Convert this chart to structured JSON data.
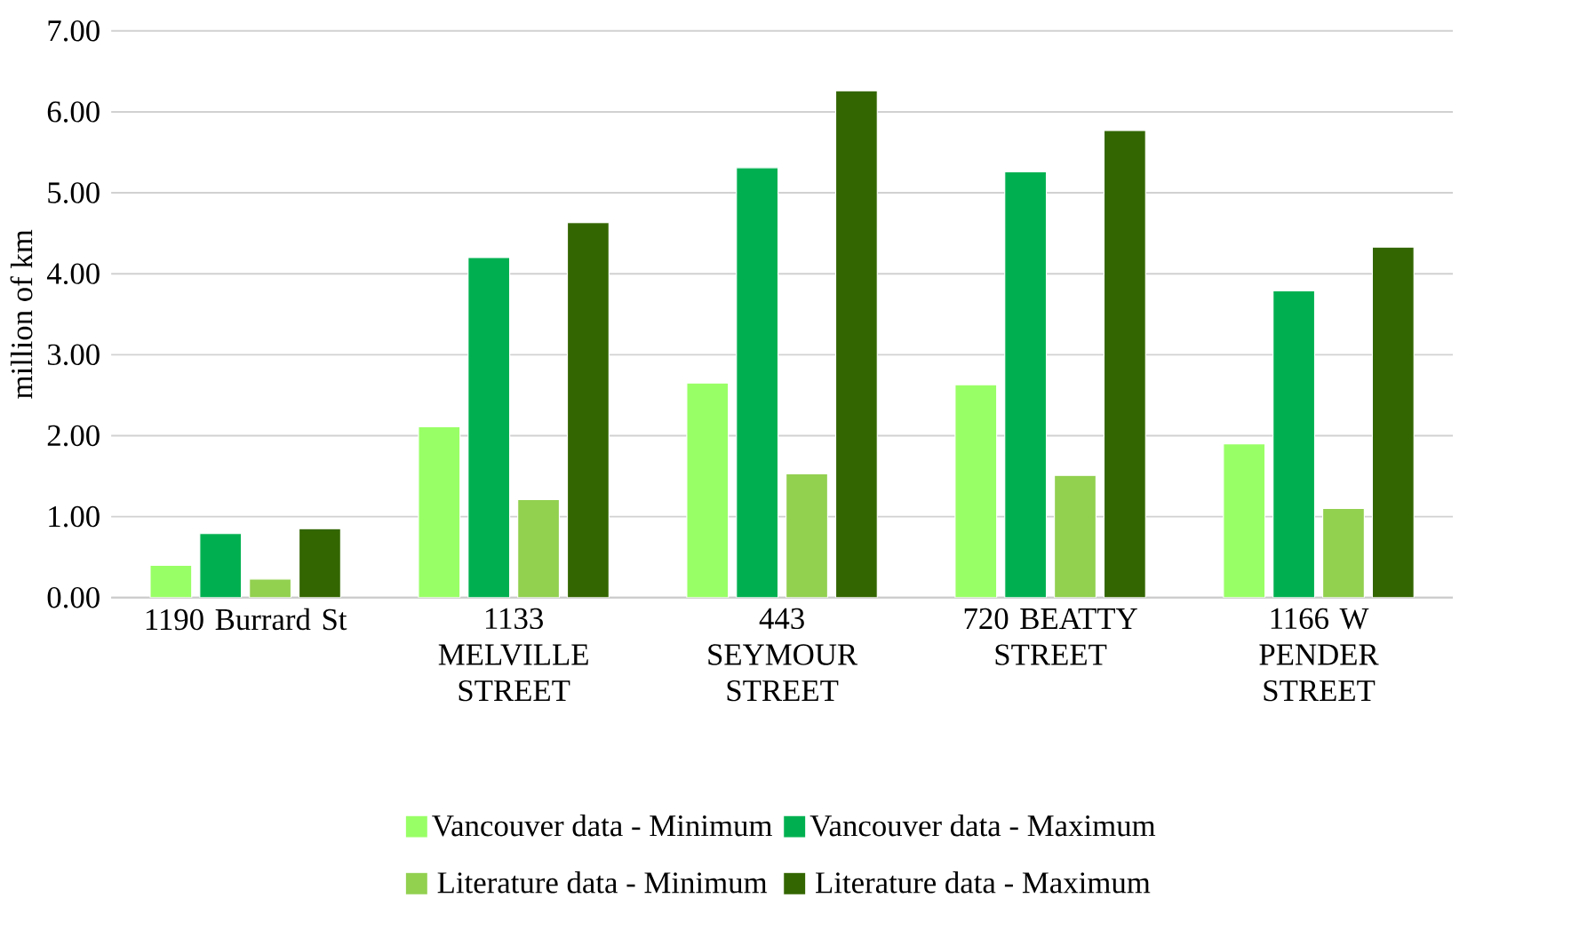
{
  "chart_data": {
    "type": "bar",
    "ylabel": "million of km",
    "categories": [
      "1190 Burrard St",
      "1133 MELVILLE STREET",
      "443 SEYMOUR STREET",
      "720 BEATTY STREET",
      "1166 W PENDER STREET"
    ],
    "series": [
      {
        "name": "Vancouver data - Minimum",
        "color": "#99ff66",
        "values": [
          0.4,
          2.11,
          2.65,
          2.63,
          1.9
        ]
      },
      {
        "name": "Vancouver data - Maximum",
        "color": "#00b050",
        "values": [
          0.79,
          4.2,
          5.31,
          5.26,
          3.79
        ]
      },
      {
        "name": "Literature data - Minimum",
        "color": "#92d050",
        "values": [
          0.23,
          1.21,
          1.53,
          1.51,
          1.1
        ]
      },
      {
        "name": "Literature data - Maximum",
        "color": "#336600",
        "values": [
          0.85,
          4.63,
          6.26,
          5.77,
          4.33
        ]
      }
    ],
    "ylim": [
      0,
      7
    ],
    "yticks": [
      {
        "value": 0,
        "label": "0.00"
      },
      {
        "value": 1,
        "label": "1.00"
      },
      {
        "value": 2,
        "label": "2.00"
      },
      {
        "value": 3,
        "label": "3.00"
      },
      {
        "value": 4,
        "label": "4.00"
      },
      {
        "value": 5,
        "label": "5.00"
      },
      {
        "value": 6,
        "label": "6.00"
      },
      {
        "value": 7,
        "label": "7.00"
      }
    ],
    "grid": "y",
    "legend": "bottom"
  }
}
